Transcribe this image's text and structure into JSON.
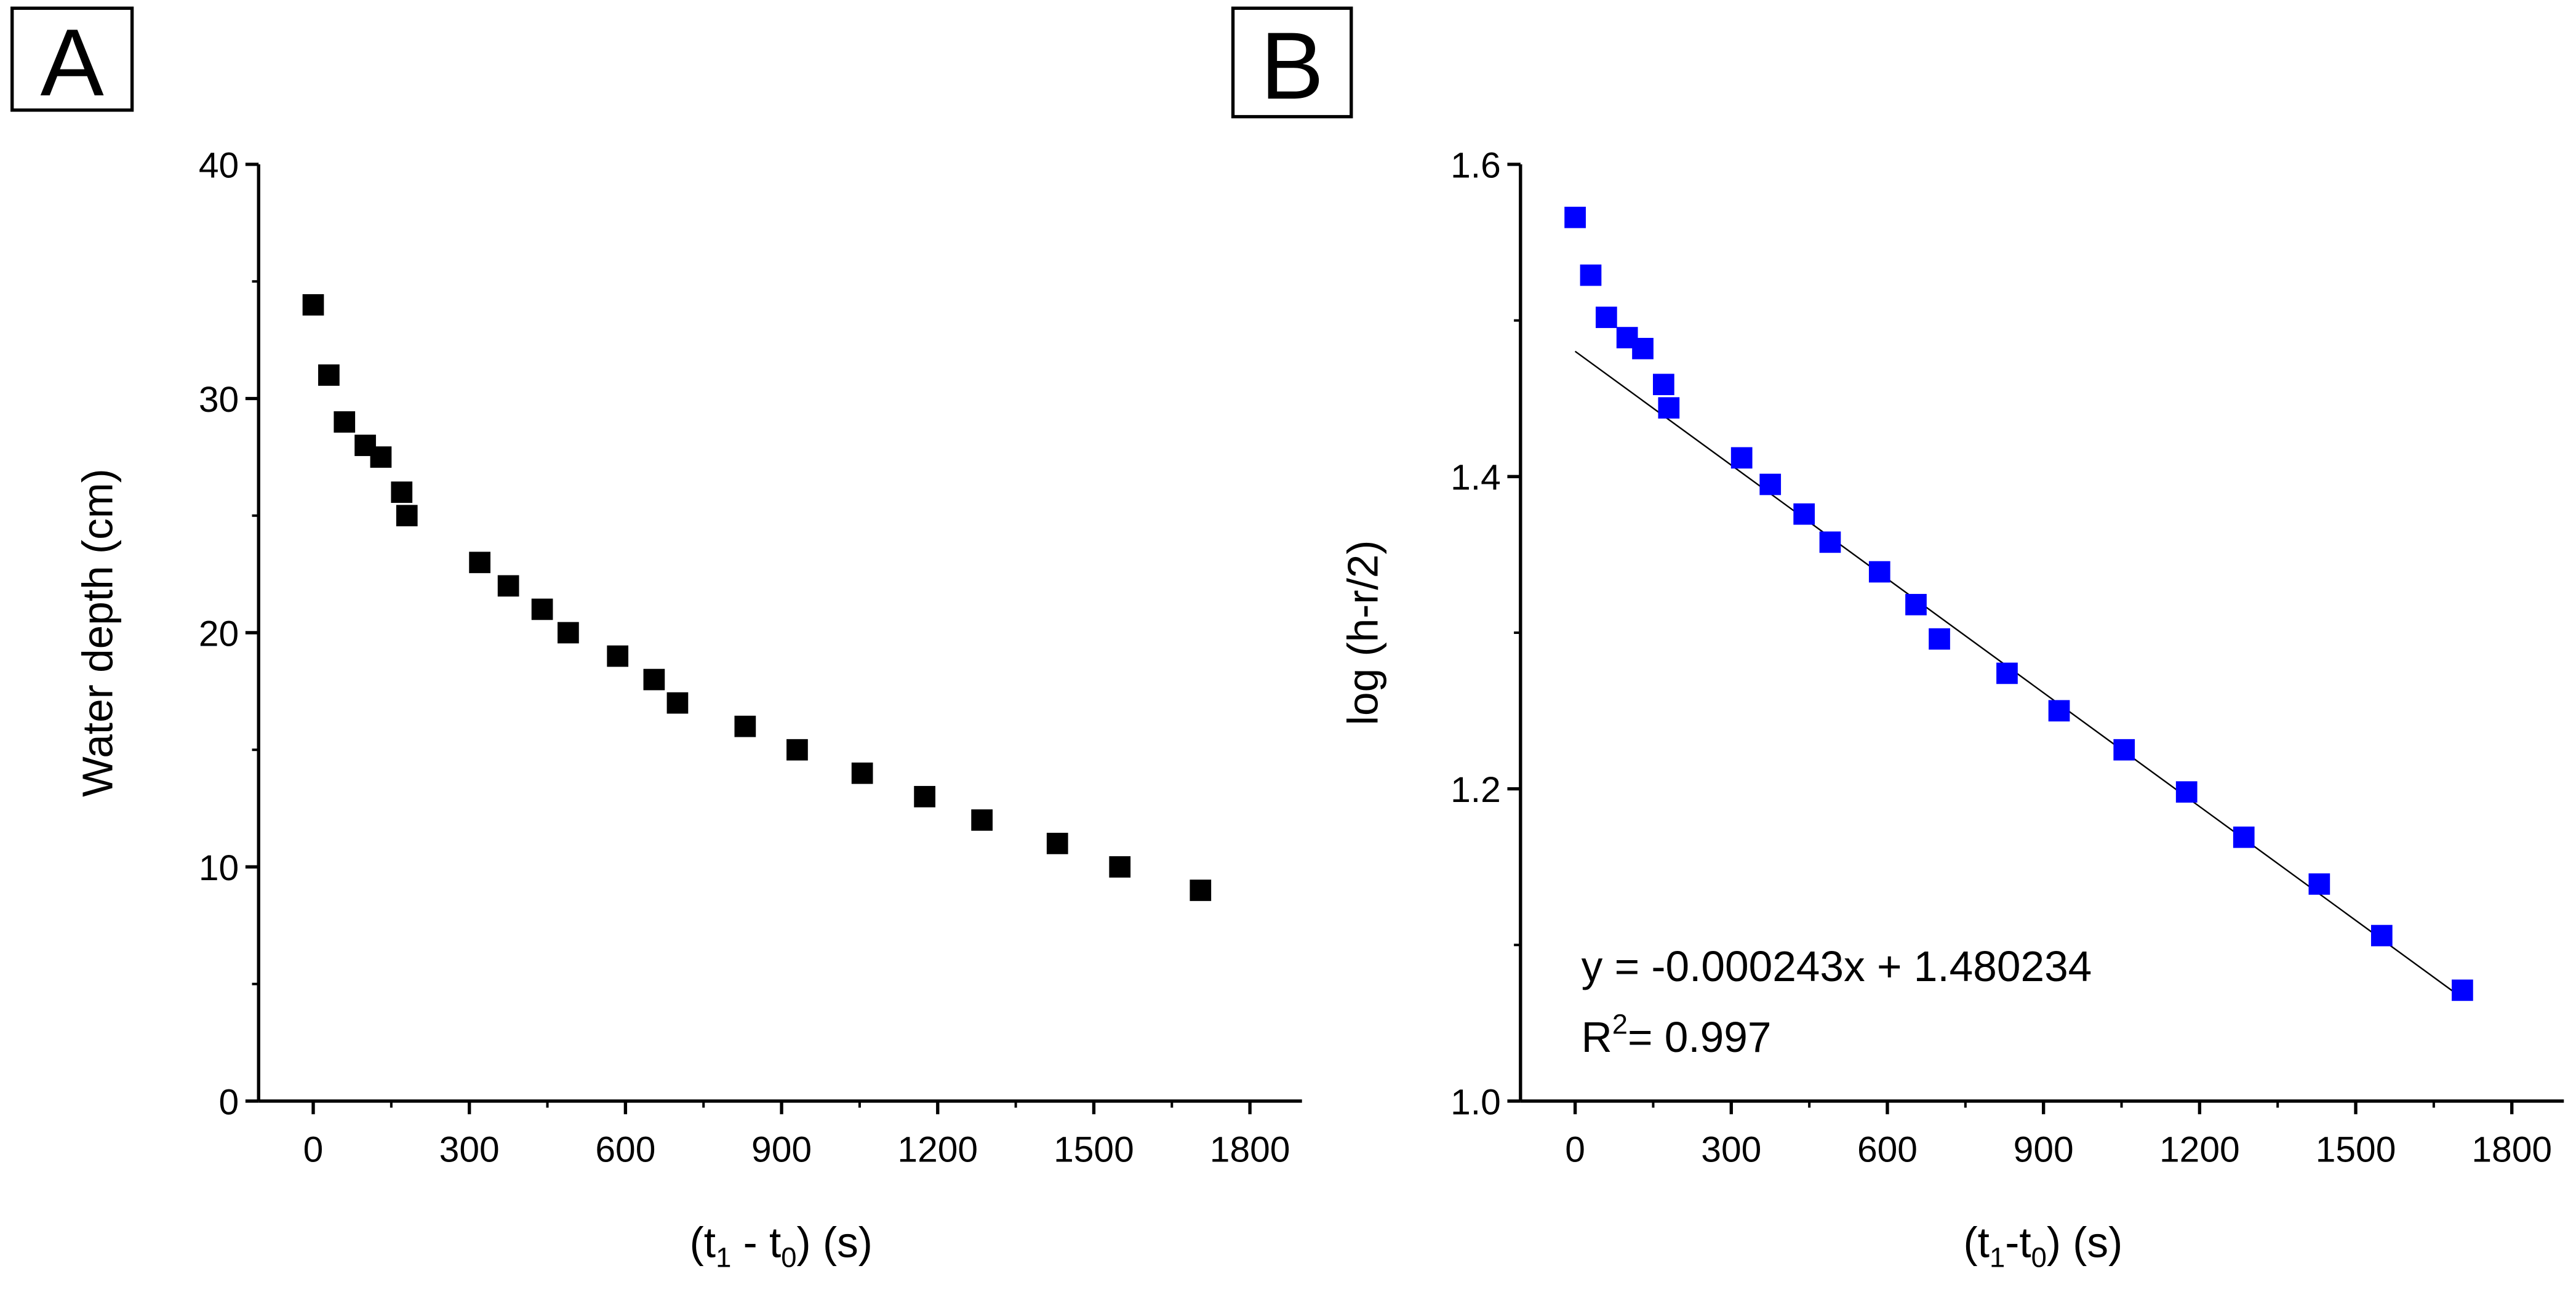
{
  "chart_data": [
    {
      "panel_label": "A",
      "type": "scatter",
      "xlabel": {
        "pre": "(t",
        "sub1": "1",
        "mid": " - t",
        "sub2": "0",
        "post": ") (s)"
      },
      "ylabel": "Water depth (cm)",
      "xlim": [
        -105,
        1900
      ],
      "ylim": [
        0,
        40
      ],
      "xticks": [
        0,
        300,
        600,
        900,
        1200,
        1500,
        1800
      ],
      "yticks": [
        0,
        10,
        20,
        30,
        40
      ],
      "grid": false,
      "marker_color": "#000000",
      "x": [
        0,
        30,
        60,
        100,
        130,
        170,
        180,
        320,
        375,
        440,
        490,
        585,
        655,
        700,
        830,
        930,
        1055,
        1175,
        1285,
        1430,
        1550,
        1705
      ],
      "y": [
        34,
        31,
        29,
        28,
        27.5,
        26,
        25,
        23,
        22,
        21,
        20,
        19,
        18,
        17,
        16,
        15,
        14,
        13,
        12,
        11,
        10,
        9
      ]
    },
    {
      "panel_label": "B",
      "type": "scatter",
      "xlabel": {
        "pre": "(t",
        "sub1": "1",
        "mid": "-t",
        "sub2": "0",
        "post": ") (s)"
      },
      "ylabel": "log (h-r/2)",
      "xlim": [
        -105,
        1900
      ],
      "ylim": [
        1.0,
        1.6
      ],
      "xticks": [
        0,
        300,
        600,
        900,
        1200,
        1500,
        1800
      ],
      "yticks": [
        "1.0",
        "1.2",
        "1.4",
        "1.6"
      ],
      "grid": false,
      "marker_color": "#0000FF",
      "x": [
        0,
        30,
        60,
        100,
        130,
        170,
        180,
        320,
        375,
        440,
        490,
        585,
        655,
        700,
        830,
        930,
        1055,
        1175,
        1285,
        1430,
        1550,
        1705
      ],
      "y": [
        1.566,
        1.529,
        1.502,
        1.489,
        1.482,
        1.459,
        1.444,
        1.412,
        1.395,
        1.376,
        1.358,
        1.339,
        1.318,
        1.296,
        1.274,
        1.25,
        1.225,
        1.198,
        1.169,
        1.139,
        1.106,
        1.071
      ],
      "fit": {
        "slope": -0.000243,
        "intercept": 1.480234,
        "x_range": [
          0,
          1705
        ]
      },
      "annotation": {
        "equation": "y = -0.000243x + 1.480234",
        "r2_label": "R",
        "r2_sup": "2",
        "r2_value": "= 0.997"
      }
    }
  ]
}
